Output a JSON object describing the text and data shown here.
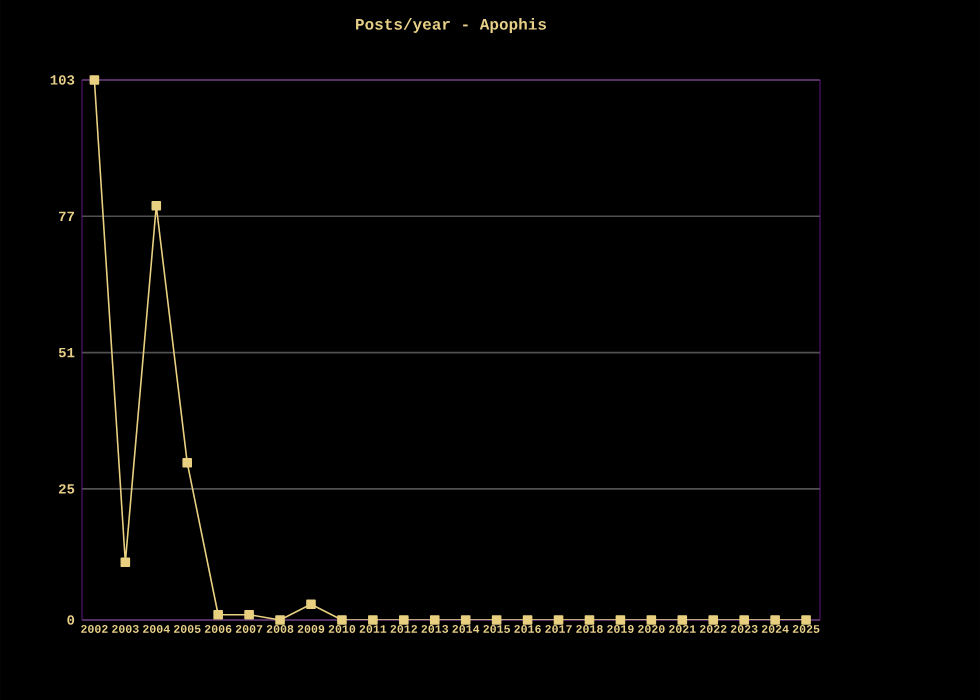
{
  "chart_data": {
    "type": "line",
    "title": "Posts/year - Apophis",
    "x": [
      2002,
      2003,
      2004,
      2005,
      2006,
      2007,
      2008,
      2009,
      2010,
      2011,
      2012,
      2013,
      2014,
      2015,
      2016,
      2017,
      2018,
      2019,
      2020,
      2021,
      2022,
      2023,
      2024,
      2025
    ],
    "series": [
      {
        "color": "#e8d080",
        "values": [
          103,
          11,
          79,
          30,
          1,
          1,
          0,
          3,
          0,
          0,
          0,
          0,
          0,
          0,
          0,
          0,
          0,
          0,
          0,
          0,
          0,
          0,
          0,
          0
        ]
      }
    ],
    "xlim": [
      2001.6,
      2025.45
    ],
    "ylim": [
      0,
      103
    ],
    "xticks": [
      2002,
      2003,
      2004,
      2005,
      2006,
      2007,
      2008,
      2009,
      2010,
      2011,
      2012,
      2013,
      2014,
      2015,
      2016,
      2017,
      2018,
      2019,
      2020,
      2021,
      2022,
      2023,
      2024,
      2025
    ],
    "yticks": [
      0,
      25,
      51,
      77,
      103
    ],
    "grid": "y",
    "marker": "square",
    "line_style": "solid"
  }
}
